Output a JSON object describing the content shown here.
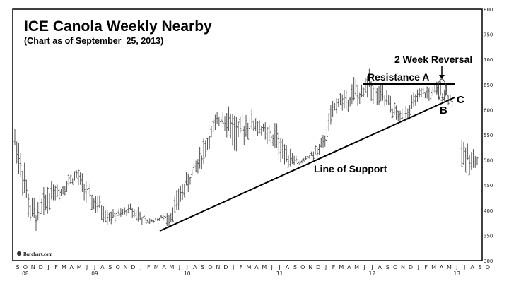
{
  "chart_data": {
    "type": "bar",
    "subtype": "ohlc-weekly",
    "title": "ICE Canola Weekly Nearby",
    "subtitle": "(Chart as of September  25, 2013)",
    "source": "Barchart.com",
    "xlabel": "",
    "ylabel": "",
    "ylim": [
      300,
      800
    ],
    "yticks": [
      300,
      350,
      400,
      450,
      500,
      550,
      600,
      650,
      700,
      750,
      800
    ],
    "y_axis_position": "right",
    "grid": false,
    "x_month_labels": [
      "S",
      "O",
      "N",
      "D",
      "J",
      "F",
      "M",
      "A",
      "M",
      "J",
      "J",
      "A",
      "S",
      "O",
      "N",
      "D",
      "J",
      "F",
      "M",
      "A",
      "M",
      "J",
      "J",
      "A",
      "S",
      "O",
      "N",
      "D",
      "J",
      "F",
      "M",
      "A",
      "M",
      "J",
      "J",
      "A",
      "S",
      "O",
      "N",
      "D",
      "J",
      "F",
      "M",
      "A",
      "M",
      "J",
      "J",
      "A",
      "S",
      "O",
      "N",
      "D",
      "J",
      "F",
      "M",
      "A",
      "M",
      "J",
      "J",
      "A",
      "S",
      "O"
    ],
    "x_year_labels": [
      {
        "label": "08",
        "month_index": 1
      },
      {
        "label": "09",
        "month_index": 10
      },
      {
        "label": "10",
        "month_index": 22
      },
      {
        "label": "11",
        "month_index": 34
      },
      {
        "label": "12",
        "month_index": 46
      },
      {
        "label": "13",
        "month_index": 57
      }
    ],
    "monthly_ranges": {
      "months": [
        "Sep08",
        "Oct08",
        "Nov08",
        "Dec08",
        "Jan09",
        "Feb09",
        "Mar09",
        "Apr09",
        "May09",
        "Jun09",
        "Jul09",
        "Aug09",
        "Sep09",
        "Oct09",
        "Nov09",
        "Dec09",
        "Jan10",
        "Feb10",
        "Mar10",
        "Apr10",
        "May10",
        "Jun10",
        "Jul10",
        "Aug10",
        "Sep10",
        "Oct10",
        "Nov10",
        "Dec10",
        "Jan11",
        "Feb11",
        "Mar11",
        "Apr11",
        "May11",
        "Jun11",
        "Jul11",
        "Aug11",
        "Sep11",
        "Oct11",
        "Nov11",
        "Dec11",
        "Jan12",
        "Feb12",
        "Mar12",
        "Apr12",
        "May12",
        "Jun12",
        "Jul12",
        "Aug12",
        "Sep12",
        "Oct12",
        "Nov12",
        "Dec12",
        "Jan13",
        "Feb13",
        "Mar13",
        "Apr13",
        "May13",
        "Jun13",
        "Jul13",
        "Aug13",
        "Sep13"
      ],
      "high": [
        572,
        520,
        430,
        420,
        455,
        460,
        455,
        475,
        485,
        470,
        445,
        430,
        410,
        400,
        405,
        415,
        410,
        385,
        385,
        390,
        405,
        440,
        470,
        495,
        530,
        560,
        590,
        610,
        620,
        590,
        600,
        600,
        580,
        570,
        575,
        545,
        520,
        500,
        510,
        530,
        550,
        610,
        640,
        640,
        665,
        650,
        690,
        655,
        650,
        620,
        600,
        620,
        640,
        645,
        650,
        660,
        655,
        620,
        540,
        545,
        510
      ],
      "low": [
        510,
        430,
        360,
        355,
        380,
        420,
        420,
        440,
        455,
        420,
        395,
        380,
        370,
        375,
        385,
        390,
        370,
        370,
        375,
        380,
        365,
        390,
        420,
        450,
        470,
        510,
        550,
        570,
        520,
        500,
        540,
        545,
        545,
        520,
        510,
        480,
        490,
        490,
        500,
        500,
        510,
        560,
        600,
        590,
        610,
        600,
        620,
        600,
        590,
        580,
        570,
        580,
        600,
        620,
        615,
        610,
        615,
        595,
        470,
        470,
        480
      ]
    },
    "annotations": [
      {
        "text": "2 Week Reversal",
        "type": "label-with-arrow"
      },
      {
        "text": "Resistance A",
        "type": "horizontal-line",
        "y_value": 647
      },
      {
        "text": "Line of Support",
        "type": "trendline",
        "from": [
          "Apr10",
          358
        ],
        "to": [
          "Jun13",
          618
        ]
      },
      {
        "text": "B",
        "type": "label"
      },
      {
        "text": "C",
        "type": "label"
      }
    ]
  }
}
